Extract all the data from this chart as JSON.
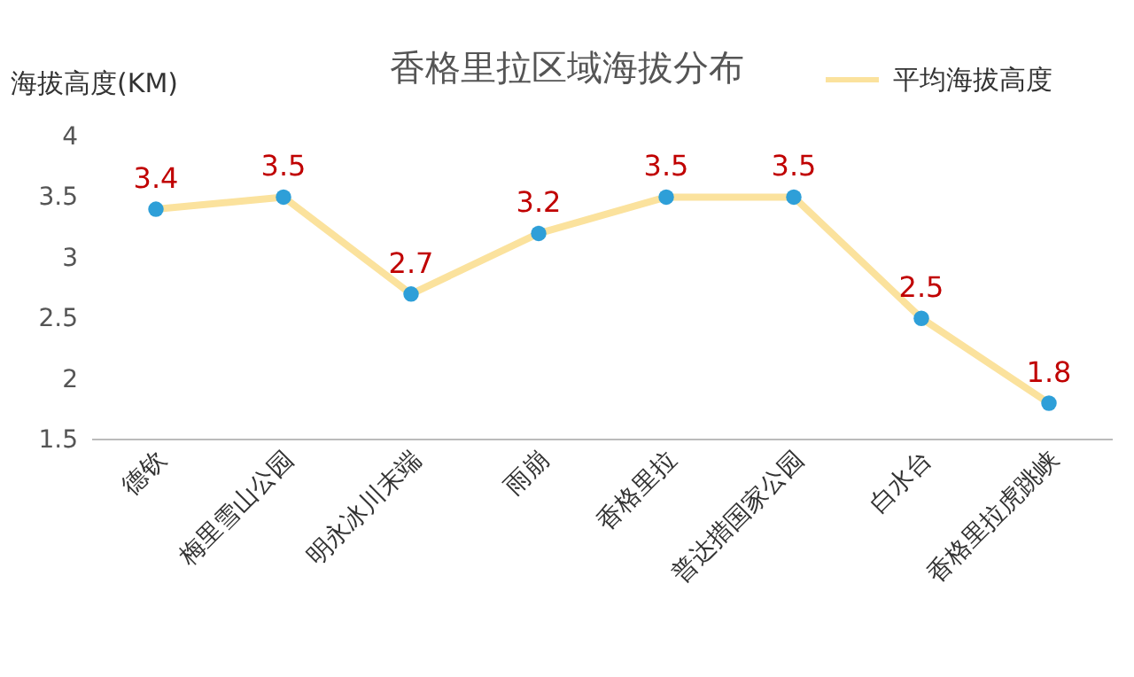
{
  "chart_data": {
    "type": "line",
    "title": "香格里拉区域海拔分布",
    "ylabel": "海拔高度(KM)",
    "categories": [
      "德钦",
      "梅里雪山公园",
      "明永冰川末端",
      "雨崩",
      "香格里拉",
      "普达措国家公园",
      "白水台",
      "香格里拉虎跳峡"
    ],
    "series": [
      {
        "name": "平均海拔高度",
        "color": "#fbe29d",
        "values": [
          3.4,
          3.5,
          2.7,
          3.2,
          3.5,
          3.5,
          2.5,
          1.8
        ]
      }
    ],
    "ylim": [
      1.5,
      4
    ],
    "yticks": [
      {
        "value": 1.5,
        "label": "1.5"
      },
      2,
      {
        "value": 2.5,
        "label": "2.5"
      },
      3,
      {
        "value": 3.5,
        "label": "3.5"
      },
      4
    ],
    "data_labels": true,
    "marker": "circle",
    "legend": "top right"
  }
}
